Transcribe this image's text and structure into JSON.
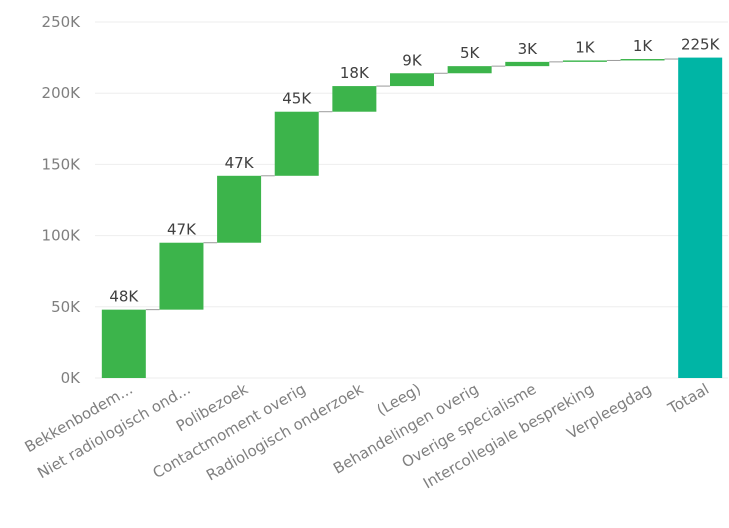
{
  "chart_data": {
    "type": "bar",
    "subtype": "waterfall",
    "categories": [
      "Bekkenbodem...",
      "Niet radiologisch ond...",
      "Polibezoek",
      "Contactmoment overig",
      "Radiologisch onderzoek",
      "(Leeg)",
      "Behandelingen overig",
      "Overige specialisme",
      "Intercollegiale bespreking",
      "Verpleegdag",
      "Totaal"
    ],
    "values": [
      48,
      47,
      47,
      45,
      18,
      9,
      5,
      3,
      1,
      1,
      225
    ],
    "value_unit": "K",
    "data_labels": [
      "48K",
      "47K",
      "47K",
      "45K",
      "18K",
      "9K",
      "5K",
      "3K",
      "1K",
      "1K",
      "225K"
    ],
    "is_total": [
      false,
      false,
      false,
      false,
      false,
      false,
      false,
      false,
      false,
      false,
      true
    ],
    "y_ticks": [
      0,
      50,
      100,
      150,
      200,
      250
    ],
    "y_tick_labels": [
      "0K",
      "50K",
      "100K",
      "150K",
      "200K",
      "250K"
    ],
    "ylim": [
      0,
      250
    ],
    "grid": true,
    "colors": {
      "increase": "#3cb44b",
      "total": "#00b5a5"
    }
  }
}
